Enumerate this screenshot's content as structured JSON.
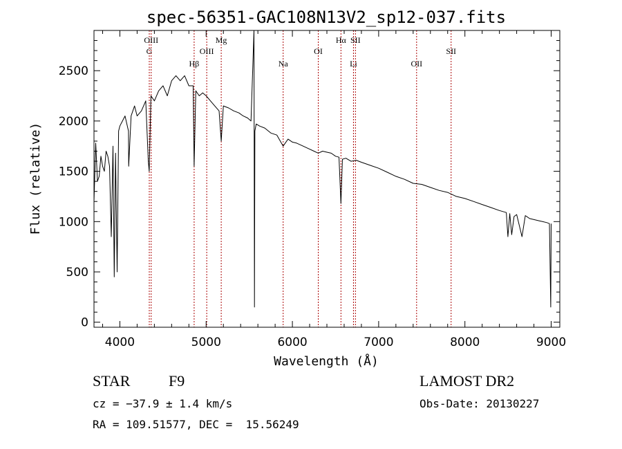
{
  "chart_data": {
    "type": "line",
    "title": "spec-56351-GAC108N13V2_sp12-037.fits",
    "xlabel": "Wavelength (Å)",
    "ylabel": "Flux (relative)",
    "xlim": [
      3700,
      9100
    ],
    "ylim": [
      -50,
      2900
    ],
    "x_ticks": [
      4000,
      5000,
      6000,
      7000,
      8000,
      9000
    ],
    "y_ticks": [
      0,
      500,
      1000,
      1500,
      2000,
      2500
    ],
    "line_color": "#000000",
    "marker_color": "#aa0000",
    "series": [
      {
        "x": [
          3700,
          3720,
          3740,
          3760,
          3780,
          3800,
          3820,
          3840,
          3860,
          3880,
          3900,
          3920,
          3935,
          3950,
          3968,
          3985,
          4000,
          4030,
          4060,
          4100,
          4102,
          4130,
          4170,
          4200,
          4250,
          4300,
          4330,
          4340,
          4360,
          4400,
          4450,
          4500,
          4550,
          4600,
          4650,
          4700,
          4750,
          4800,
          4850,
          4861,
          4880,
          4920,
          4960,
          5000,
          5050,
          5100,
          5150,
          5175,
          5200,
          5260,
          5320,
          5380,
          5430,
          5480,
          5520,
          5555,
          5560,
          5565,
          5580,
          5620,
          5680,
          5750,
          5820,
          5893,
          5950,
          6000,
          6050,
          6100,
          6150,
          6200,
          6250,
          6300,
          6350,
          6400,
          6450,
          6500,
          6540,
          6563,
          6580,
          6620,
          6680,
          6740,
          6800,
          6900,
          7000,
          7100,
          7200,
          7300,
          7400,
          7500,
          7600,
          7700,
          7800,
          7900,
          8000,
          8100,
          8200,
          8300,
          8400,
          8480,
          8498,
          8520,
          8542,
          8570,
          8600,
          8662,
          8700,
          8750,
          8800,
          8850,
          8900,
          8950,
          8980,
          8995,
          9000
        ],
        "y": [
          1200,
          1780,
          1400,
          1450,
          1650,
          1550,
          1500,
          1700,
          1650,
          1550,
          850,
          1750,
          450,
          1680,
          500,
          1900,
          1950,
          2000,
          2050,
          1900,
          1550,
          2050,
          2150,
          2050,
          2100,
          2200,
          1600,
          1500,
          2250,
          2200,
          2300,
          2350,
          2250,
          2400,
          2450,
          2400,
          2450,
          2350,
          2350,
          1550,
          2300,
          2250,
          2280,
          2250,
          2200,
          2150,
          2100,
          1800,
          2150,
          2130,
          2100,
          2080,
          2050,
          2030,
          2000,
          2900,
          150,
          1900,
          1970,
          1950,
          1930,
          1880,
          1860,
          1750,
          1820,
          1790,
          1780,
          1760,
          1740,
          1720,
          1700,
          1680,
          1700,
          1690,
          1680,
          1650,
          1640,
          1180,
          1620,
          1630,
          1600,
          1610,
          1590,
          1560,
          1530,
          1490,
          1450,
          1420,
          1380,
          1370,
          1340,
          1310,
          1290,
          1250,
          1230,
          1200,
          1170,
          1140,
          1110,
          1090,
          850,
          1080,
          870,
          1050,
          1070,
          850,
          1060,
          1030,
          1020,
          1010,
          1000,
          990,
          980,
          150,
          980
        ]
      }
    ],
    "lines": [
      {
        "x": 4341,
        "label": "G",
        "tier": 2
      },
      {
        "x": 4363,
        "label": "OIII",
        "tier": 1
      },
      {
        "x": 4861,
        "label": "Hβ",
        "tier": 3
      },
      {
        "x": 5007,
        "label": "OIII",
        "tier": 2
      },
      {
        "x": 5175,
        "label": "Mg",
        "tier": 1
      },
      {
        "x": 5893,
        "label": "Na",
        "tier": 3
      },
      {
        "x": 6300,
        "label": "OI",
        "tier": 2
      },
      {
        "x": 6563,
        "label": "Hα",
        "tier": 1
      },
      {
        "x": 6708,
        "label": "Li",
        "tier": 3
      },
      {
        "x": 6731,
        "label": "SII",
        "tier": 1
      },
      {
        "x": 7440,
        "label": "OII",
        "tier": 3
      },
      {
        "x": 7840,
        "label": "SII",
        "tier": 2
      }
    ]
  },
  "info": {
    "object_class": "STAR",
    "subclass": "F9",
    "survey": "LAMOST DR2",
    "cz": "cz = −37.9 ± 1.4 km/s",
    "obs_date": "Obs-Date: 20130227",
    "coords": "RA = 109.51577, DEC =  15.56249"
  }
}
